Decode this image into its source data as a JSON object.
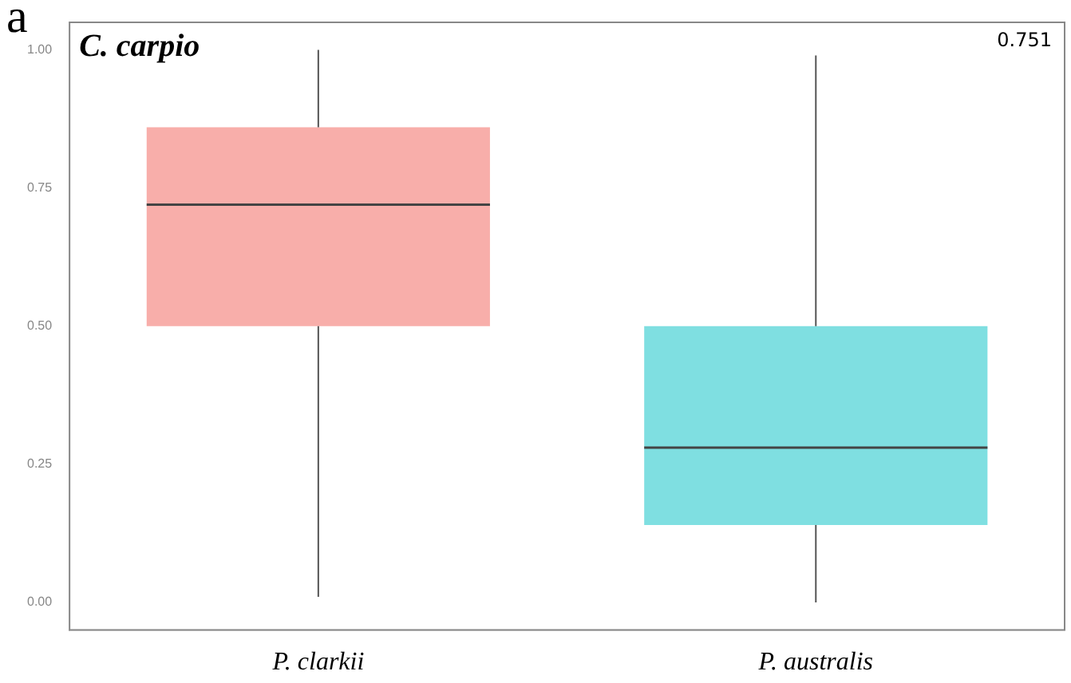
{
  "chart_data": {
    "type": "box",
    "categories": [
      "P. clarkii",
      "P. australis"
    ],
    "colors": [
      "#f8aeaa",
      "#7fdfe1"
    ],
    "boxes": [
      {
        "low": 0.01,
        "q1": 0.5,
        "median": 0.72,
        "q3": 0.86,
        "high": 1.0
      },
      {
        "low": 0.0,
        "q1": 0.14,
        "median": 0.28,
        "q3": 0.5,
        "high": 0.99
      }
    ],
    "ylim": [
      -0.05,
      1.05
    ],
    "yticks": [
      {
        "value": 0,
        "label": "0.00"
      },
      {
        "value": 0.25,
        "label": "0.25"
      },
      {
        "value": 0.5,
        "label": "0.50"
      },
      {
        "value": 0.75,
        "label": "0.75"
      },
      {
        "value": 1,
        "label": "1.00"
      }
    ],
    "grid": false,
    "legend": false,
    "annotations": [
      "a",
      "C. carpio",
      "0.751"
    ]
  }
}
